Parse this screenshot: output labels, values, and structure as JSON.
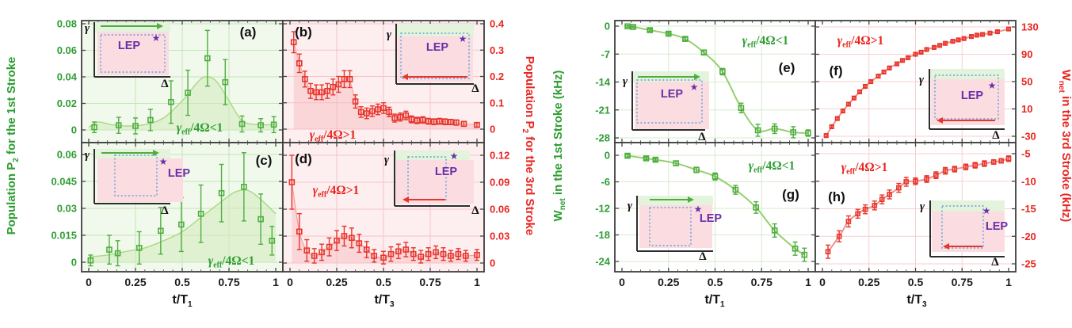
{
  "colors": {
    "green_label": "#2e9e33",
    "red_label": "#e8251f",
    "green_marker": "#4fae3f",
    "green_line": "#97cf6f",
    "red_marker": "#e8342b",
    "red_line_light": "#f0928e",
    "purple_lep": "#6a2fa8",
    "inset_pink": "#fbdce0",
    "inset_green_band": "#e4f3dc",
    "dotted_blue": "#64a0d8",
    "panel_green_bg": "#f1f9ec",
    "panel_pink_bg": "#fdeef0",
    "grid_green": "#c4e5b8",
    "grid_pink": "#f6c4c7",
    "grid_green_light": "#d6ecca",
    "grid_pink_light": "#f8cfcf",
    "frame": "#3f3f3f"
  },
  "axis_titles": {
    "pop1": {
      "pre": "Population P",
      "sub": "2",
      "post": " for the 1st Stroke"
    },
    "pop3": {
      "pre": "Population P",
      "sub": "2",
      "post": " for the 3rd Stroke"
    },
    "w1": {
      "pre": "W",
      "sub": "net",
      "post": " in the 1st Stroke (kHz)"
    },
    "w3": {
      "pre": "W",
      "sub": "net",
      "post": " in the 3rd Stroke (kHz)"
    },
    "x1": {
      "pre": "t/T",
      "sub": "1"
    },
    "x3": {
      "pre": "t/T",
      "sub": "3"
    }
  },
  "x_axis": {
    "vals": [
      0,
      0.25,
      0.5,
      0.75,
      1
    ],
    "labels": [
      "0",
      "0.25",
      "0.5",
      "0.75",
      "1"
    ]
  },
  "chart_data": [
    {
      "id": "a",
      "type": "scatter",
      "letter": "(a)",
      "color": "green",
      "condition": {
        "pre": "γ",
        "sub": "eff",
        "post": "/4Ω<1"
      },
      "ylabel": "Population P2 for the 1st Stroke",
      "xlabel": "t/T1",
      "ylim": [
        0,
        0.08
      ],
      "y_tick_vals": [
        0.08,
        0.06,
        0.04,
        0.02,
        0
      ],
      "y_tick_labels": [
        "0.08",
        "0.06",
        "0.04",
        "0.02",
        "0"
      ],
      "x": [
        0.03,
        0.16,
        0.25,
        0.33,
        0.44,
        0.53,
        0.635,
        0.73,
        0.82,
        0.92,
        0.99
      ],
      "y": [
        0.002,
        0.0035,
        0.003,
        0.0075,
        0.021,
        0.028,
        0.054,
        0.036,
        0.0045,
        0.0035,
        0.004
      ],
      "err": [
        0.004,
        0.006,
        0.006,
        0.008,
        0.016,
        0.017,
        0.021,
        0.017,
        0.006,
        0.005,
        0.006
      ],
      "envelope": {
        "x": [
          0,
          0.05,
          0.12,
          0.2,
          0.3,
          0.4,
          0.5,
          0.57,
          0.62,
          0.68,
          0.75,
          0.82,
          0.9,
          1
        ],
        "y": [
          0.002,
          0.006,
          0.004,
          0.003,
          0.004,
          0.009,
          0.022,
          0.034,
          0.04,
          0.037,
          0.022,
          0.007,
          0.004,
          0.004
        ]
      },
      "inset": {
        "gamma": "γ",
        "delta": "Δ",
        "lep": "LEP",
        "star": "★",
        "ramp_direction": "right",
        "lep_position": "inside"
      }
    },
    {
      "id": "b",
      "type": "scatter",
      "letter": "(b)",
      "color": "red",
      "condition": {
        "pre": "γ",
        "sub": "eff",
        "post": "/4Ω>1"
      },
      "ylabel": "Population P2 for the 3rd Stroke",
      "xlabel": "t/T3",
      "ylim": [
        0,
        0.4
      ],
      "y_tick_vals": [
        0.4,
        0.3,
        0.2,
        0.1,
        0
      ],
      "y_tick_labels": [
        "0.4",
        "0.3",
        "0.2",
        "0.1",
        "0"
      ],
      "x": [
        0.02,
        0.05,
        0.08,
        0.11,
        0.14,
        0.17,
        0.2,
        0.23,
        0.26,
        0.29,
        0.32,
        0.35,
        0.38,
        0.41,
        0.44,
        0.47,
        0.5,
        0.53,
        0.56,
        0.59,
        0.62,
        0.65,
        0.68,
        0.71,
        0.74,
        0.77,
        0.8,
        0.83,
        0.86,
        0.89,
        0.93,
        1.0
      ],
      "y": [
        0.33,
        0.25,
        0.19,
        0.145,
        0.14,
        0.14,
        0.145,
        0.16,
        0.17,
        0.19,
        0.19,
        0.105,
        0.065,
        0.06,
        0.068,
        0.075,
        0.08,
        0.065,
        0.042,
        0.046,
        0.052,
        0.037,
        0.033,
        0.035,
        0.03,
        0.028,
        0.03,
        0.028,
        0.027,
        0.025,
        0.02,
        0.016
      ],
      "err": [
        0.04,
        0.035,
        0.03,
        0.028,
        0.028,
        0.028,
        0.028,
        0.03,
        0.03,
        0.032,
        0.032,
        0.025,
        0.02,
        0.02,
        0.02,
        0.02,
        0.02,
        0.018,
        0.015,
        0.015,
        0.016,
        0.013,
        0.012,
        0.012,
        0.011,
        0.011,
        0.011,
        0.011,
        0.01,
        0.01,
        0.009,
        0.008
      ],
      "inset": {
        "gamma": "γ",
        "delta": "Δ",
        "lep": "LEP",
        "star": "★",
        "ramp_direction": "left",
        "lep_position": "inside"
      }
    },
    {
      "id": "c",
      "type": "scatter",
      "letter": "(c)",
      "color": "green",
      "condition": {
        "pre": "γ",
        "sub": "eff",
        "post": "/4Ω<1"
      },
      "ylabel": "Population P2 for the 1st Stroke",
      "xlabel": "t/T1",
      "ylim": [
        0,
        0.06
      ],
      "y_tick_vals": [
        0.06,
        0.045,
        0.03,
        0.015,
        0
      ],
      "y_tick_labels": [
        "0.06",
        "0.045",
        "0.03",
        "0.015",
        "0"
      ],
      "x": [
        0.01,
        0.11,
        0.155,
        0.27,
        0.385,
        0.495,
        0.6,
        0.71,
        0.83,
        0.92,
        0.98
      ],
      "y": [
        0.001,
        0.007,
        0.005,
        0.008,
        0.0175,
        0.021,
        0.027,
        0.0385,
        0.042,
        0.024,
        0.012
      ],
      "err": [
        0.003,
        0.008,
        0.007,
        0.009,
        0.013,
        0.015,
        0.016,
        0.016,
        0.019,
        0.014,
        0.008
      ],
      "envelope": {
        "x": [
          0,
          0.1,
          0.2,
          0.3,
          0.4,
          0.5,
          0.6,
          0.7,
          0.78,
          0.85,
          0.92,
          1
        ],
        "y": [
          0.003,
          0.004,
          0.006,
          0.008,
          0.012,
          0.017,
          0.025,
          0.033,
          0.039,
          0.04,
          0.035,
          0.027
        ]
      },
      "inset": {
        "gamma": "γ",
        "delta": "Δ",
        "lep": "LEP",
        "star": "★",
        "ramp_direction": "right",
        "lep_position": "outside"
      }
    },
    {
      "id": "d",
      "type": "scatter",
      "letter": "(d)",
      "color": "red",
      "condition": {
        "pre": "γ",
        "sub": "eff",
        "post": "/4Ω>1"
      },
      "ylabel": "Population P2 for the 3rd Stroke",
      "xlabel": "t/T3",
      "ylim": [
        0,
        0.12
      ],
      "y_tick_vals": [
        0.12,
        0.09,
        0.06,
        0.03,
        0
      ],
      "y_tick_labels": [
        "0.12",
        "0.09",
        "0.06",
        "0.03",
        "0"
      ],
      "x": [
        0.01,
        0.05,
        0.09,
        0.13,
        0.17,
        0.21,
        0.25,
        0.29,
        0.33,
        0.37,
        0.41,
        0.45,
        0.5,
        0.54,
        0.58,
        0.62,
        0.66,
        0.7,
        0.74,
        0.78,
        0.82,
        0.86,
        0.9,
        0.94,
        1.0
      ],
      "y": [
        0.09,
        0.035,
        0.014,
        0.008,
        0.012,
        0.018,
        0.025,
        0.03,
        0.028,
        0.022,
        0.015,
        0.008,
        0.006,
        0.01,
        0.013,
        0.015,
        0.01,
        0.007,
        0.01,
        0.012,
        0.01,
        0.008,
        0.01,
        0.008,
        0.009
      ],
      "err": [
        0.03,
        0.02,
        0.012,
        0.008,
        0.009,
        0.01,
        0.011,
        0.011,
        0.011,
        0.01,
        0.009,
        0.007,
        0.007,
        0.008,
        0.008,
        0.008,
        0.007,
        0.007,
        0.007,
        0.007,
        0.007,
        0.006,
        0.006,
        0.006,
        0.006
      ],
      "inset": {
        "gamma": "γ",
        "delta": "Δ",
        "lep": "LEP",
        "star": "★",
        "ramp_direction": "left",
        "lep_position": "outside"
      }
    },
    {
      "id": "e",
      "type": "scatter",
      "letter": "(e)",
      "color": "green",
      "condition": {
        "pre": "γ",
        "sub": "eff",
        "post": "/4Ω<1"
      },
      "ylabel": "Wnet in the 1st Stroke (kHz)",
      "xlabel": "t/T1",
      "ylim": [
        -28,
        0
      ],
      "y_tick_vals": [
        0,
        -7,
        -14,
        -21,
        -28
      ],
      "y_tick_labels": [
        "0",
        "-7",
        "-14",
        "-21",
        "-28"
      ],
      "x": [
        0.03,
        0.06,
        0.15,
        0.25,
        0.34,
        0.44,
        0.54,
        0.64,
        0.73,
        0.82,
        0.92,
        1.0
      ],
      "y": [
        -0.05,
        -0.2,
        -1.0,
        -1.9,
        -3.2,
        -6.6,
        -11.4,
        -20.5,
        -26.1,
        -25.7,
        -26.6,
        -26.8
      ],
      "err": [
        0.2,
        0.2,
        0.3,
        0.3,
        0.4,
        0.5,
        0.8,
        1.2,
        1.5,
        1.2,
        1.4,
        0.8
      ],
      "inset": {
        "gamma": "γ",
        "delta": "Δ",
        "lep": "LEP",
        "star": "★",
        "ramp_direction": "right",
        "lep_position": "inside"
      }
    },
    {
      "id": "f",
      "type": "scatter",
      "letter": "(f)",
      "color": "red",
      "condition": {
        "pre": "γ",
        "sub": "eff",
        "post": "/4Ω>1"
      },
      "ylabel": "Wnet in the 3rd Stroke (kHz)",
      "xlabel": "t/T3",
      "ylim": [
        -30,
        130
      ],
      "y_tick_vals": [
        130,
        90,
        50,
        10,
        -30
      ],
      "y_tick_labels": [
        "130",
        "90",
        "50",
        "10",
        "-30"
      ],
      "x": [
        0.02,
        0.05,
        0.08,
        0.11,
        0.14,
        0.17,
        0.2,
        0.23,
        0.26,
        0.3,
        0.33,
        0.36,
        0.4,
        0.43,
        0.46,
        0.5,
        0.53,
        0.56,
        0.6,
        0.63,
        0.66,
        0.7,
        0.73,
        0.76,
        0.8,
        0.83,
        0.86,
        0.9,
        0.94,
        1.0
      ],
      "y": [
        -29,
        -16,
        -4,
        7,
        17,
        26,
        35,
        43,
        50,
        58,
        64,
        70,
        76,
        81,
        85,
        90,
        93,
        97,
        100,
        103,
        106,
        109,
        111,
        113,
        116,
        118,
        119,
        121,
        123,
        127
      ],
      "err": [
        2,
        2,
        2,
        2,
        2,
        2,
        2,
        2,
        2,
        2,
        2,
        2,
        2,
        2,
        2,
        2,
        2,
        2,
        2,
        2,
        2,
        2,
        2,
        2,
        2,
        2,
        2,
        2,
        2,
        2
      ],
      "inset": {
        "gamma": "γ",
        "delta": "Δ",
        "lep": "LEP",
        "star": "★",
        "ramp_direction": "left",
        "lep_position": "inside"
      }
    },
    {
      "id": "g",
      "type": "scatter",
      "letter": "(g)",
      "color": "green",
      "condition": {
        "pre": "γ",
        "sub": "eff",
        "post": "/4Ω<1"
      },
      "ylabel": "Wnet in the 1st Stroke (kHz)",
      "xlabel": "t/T1",
      "ylim": [
        -24,
        0
      ],
      "y_tick_vals": [
        0,
        -6,
        -12,
        -18,
        -24
      ],
      "y_tick_labels": [
        "0",
        "-6",
        "-12",
        "-18",
        "-24"
      ],
      "x": [
        0.03,
        0.13,
        0.18,
        0.29,
        0.4,
        0.5,
        0.61,
        0.72,
        0.82,
        0.93,
        0.98
      ],
      "y": [
        -0.1,
        -0.7,
        -1.0,
        -1.8,
        -3.3,
        -4.8,
        -7.8,
        -11.8,
        -17.0,
        -21.1,
        -22.5
      ],
      "err": [
        0.3,
        0.3,
        0.3,
        0.5,
        0.6,
        0.8,
        1.0,
        1.3,
        1.5,
        1.5,
        1.5
      ],
      "inset": {
        "gamma": "γ",
        "delta": "Δ",
        "lep": "LEP",
        "star": "★",
        "ramp_direction": "right",
        "lep_position": "outside"
      }
    },
    {
      "id": "h",
      "type": "scatter",
      "letter": "(h)",
      "color": "red",
      "condition": {
        "pre": "γ",
        "sub": "eff",
        "post": "/4Ω>1"
      },
      "ylabel": "Wnet in the 3rd Stroke (kHz)",
      "xlabel": "t/T3",
      "ylim": [
        -25,
        -5
      ],
      "y_tick_vals": [
        -5,
        -10,
        -15,
        -20,
        -25
      ],
      "y_tick_labels": [
        "-5",
        "-10",
        "-15",
        "-20",
        "-25"
      ],
      "x": [
        0.03,
        0.09,
        0.14,
        0.19,
        0.23,
        0.28,
        0.32,
        0.36,
        0.41,
        0.45,
        0.5,
        0.56,
        0.61,
        0.66,
        0.71,
        0.77,
        0.82,
        0.87,
        0.92,
        0.96,
        1.0
      ],
      "y": [
        -22.8,
        -20.0,
        -17.3,
        -15.9,
        -15.1,
        -14.4,
        -13.3,
        -12.4,
        -11.2,
        -10.1,
        -10.0,
        -9.6,
        -8.9,
        -8.1,
        -7.8,
        -7.4,
        -7.1,
        -6.8,
        -6.5,
        -6.3,
        -5.9
      ],
      "err": [
        1.2,
        1.0,
        1.0,
        0.8,
        0.8,
        0.8,
        0.8,
        0.8,
        0.8,
        0.8,
        0.6,
        0.6,
        0.6,
        0.6,
        0.5,
        0.5,
        0.5,
        0.5,
        0.4,
        0.4,
        0.5
      ],
      "inset": {
        "gamma": "γ",
        "delta": "Δ",
        "lep": "LEP",
        "star": "★",
        "ramp_direction": "left",
        "lep_position": "outside"
      }
    }
  ]
}
